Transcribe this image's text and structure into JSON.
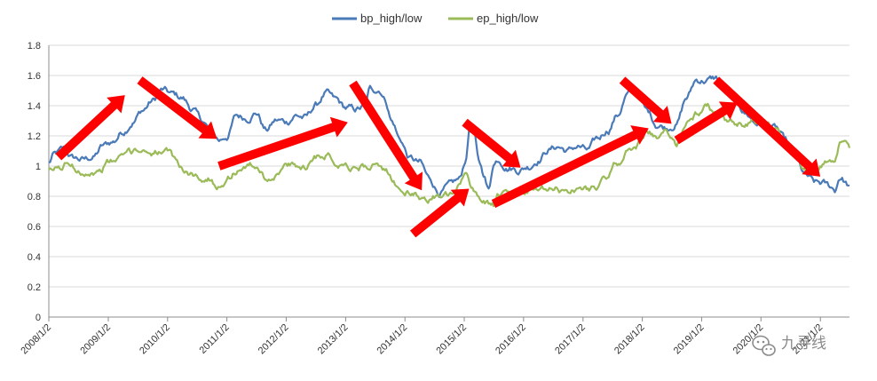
{
  "watermark": {
    "text": "九寻线",
    "icon": "wechat-icon"
  },
  "colors": {
    "bp": "#4a7ab7",
    "ep": "#9bbb59",
    "arrow": "#ff0000",
    "grid": "#d9d9d9",
    "axis": "#8c8c8c"
  },
  "chart_data": {
    "type": "line",
    "title": "",
    "xlabel": "",
    "ylabel": "",
    "ylim": [
      0,
      1.8
    ],
    "xlim": [
      "2008-01-02",
      "2021-06-30"
    ],
    "yticks": [
      "0",
      "0.2",
      "0.4",
      "0.6",
      "0.8",
      "1",
      "1.2",
      "1.4",
      "1.6",
      "1.8"
    ],
    "xticks": [
      "2008/1/2",
      "2009/1/2",
      "2010/1/2",
      "2011/1/2",
      "2012/1/2",
      "2013/1/2",
      "2014/1/2",
      "2015/1/2",
      "2016/1/2",
      "2017/1/2",
      "2018/1/2",
      "2019/1/2",
      "2020/1/2",
      "2021/1/2"
    ],
    "grid": true,
    "legend": "top-center",
    "series": [
      {
        "name": "bp_high/low",
        "color": "#4a7ab7",
        "points": [
          [
            "2008-01-02",
            1.02
          ],
          [
            "2008-02-01",
            1.07
          ],
          [
            "2008-04-01",
            1.1
          ],
          [
            "2008-06-01",
            1.05
          ],
          [
            "2008-08-01",
            1.04
          ],
          [
            "2008-10-01",
            1.06
          ],
          [
            "2008-12-01",
            1.13
          ],
          [
            "2009-02-01",
            1.16
          ],
          [
            "2009-04-01",
            1.23
          ],
          [
            "2009-06-01",
            1.3
          ],
          [
            "2009-08-01",
            1.37
          ],
          [
            "2009-10-01",
            1.43
          ],
          [
            "2009-12-01",
            1.5
          ],
          [
            "2010-02-01",
            1.47
          ],
          [
            "2010-04-01",
            1.45
          ],
          [
            "2010-06-01",
            1.38
          ],
          [
            "2010-08-01",
            1.3
          ],
          [
            "2010-10-01",
            1.22
          ],
          [
            "2010-11-15",
            1.17
          ],
          [
            "2011-01-02",
            1.2
          ],
          [
            "2011-03-01",
            1.33
          ],
          [
            "2011-05-01",
            1.32
          ],
          [
            "2011-07-01",
            1.36
          ],
          [
            "2011-09-01",
            1.24
          ],
          [
            "2011-11-01",
            1.3
          ],
          [
            "2012-01-02",
            1.29
          ],
          [
            "2012-03-01",
            1.34
          ],
          [
            "2012-05-01",
            1.32
          ],
          [
            "2012-07-01",
            1.4
          ],
          [
            "2012-09-01",
            1.48
          ],
          [
            "2012-11-01",
            1.43
          ],
          [
            "2013-01-02",
            1.38
          ],
          [
            "2013-03-01",
            1.37
          ],
          [
            "2013-05-01",
            1.39
          ],
          [
            "2013-06-01",
            1.5
          ],
          [
            "2013-08-01",
            1.51
          ],
          [
            "2013-09-01",
            1.45
          ],
          [
            "2013-10-15",
            1.3
          ],
          [
            "2013-12-01",
            1.18
          ],
          [
            "2014-02-01",
            1.05
          ],
          [
            "2014-04-01",
            1.02
          ],
          [
            "2014-06-01",
            0.91
          ],
          [
            "2014-08-01",
            0.83
          ],
          [
            "2014-10-01",
            0.86
          ],
          [
            "2014-12-01",
            0.9
          ],
          [
            "2015-01-15",
            1.05
          ],
          [
            "2015-02-01",
            1.25
          ],
          [
            "2015-03-01",
            1.23
          ],
          [
            "2015-04-01",
            1.02
          ],
          [
            "2015-05-01",
            0.95
          ],
          [
            "2015-06-01",
            0.84
          ],
          [
            "2015-07-01",
            1.02
          ],
          [
            "2015-08-01",
            1.05
          ],
          [
            "2015-10-01",
            1.0
          ],
          [
            "2015-12-01",
            0.98
          ],
          [
            "2016-02-01",
            1.0
          ],
          [
            "2016-04-01",
            1.05
          ],
          [
            "2016-06-01",
            1.11
          ],
          [
            "2016-08-01",
            1.13
          ],
          [
            "2016-10-01",
            1.1
          ],
          [
            "2016-12-01",
            1.13
          ],
          [
            "2017-02-01",
            1.1
          ],
          [
            "2017-04-01",
            1.17
          ],
          [
            "2017-06-01",
            1.24
          ],
          [
            "2017-08-01",
            1.34
          ],
          [
            "2017-10-01",
            1.47
          ],
          [
            "2017-12-01",
            1.48
          ],
          [
            "2018-02-01",
            1.36
          ],
          [
            "2018-04-01",
            1.28
          ],
          [
            "2018-06-01",
            1.26
          ],
          [
            "2018-08-01",
            1.29
          ],
          [
            "2018-10-01",
            1.45
          ],
          [
            "2018-12-01",
            1.57
          ],
          [
            "2019-02-01",
            1.57
          ],
          [
            "2019-04-01",
            1.58
          ],
          [
            "2019-06-01",
            1.5
          ],
          [
            "2019-08-01",
            1.42
          ],
          [
            "2019-10-01",
            1.35
          ],
          [
            "2019-12-01",
            1.29
          ],
          [
            "2020-02-01",
            1.27
          ],
          [
            "2020-04-01",
            1.25
          ],
          [
            "2020-06-01",
            1.16
          ],
          [
            "2020-08-01",
            1.05
          ],
          [
            "2020-10-01",
            0.93
          ],
          [
            "2020-12-01",
            0.88
          ],
          [
            "2021-01-15",
            0.88
          ],
          [
            "2021-03-01",
            0.86
          ],
          [
            "2021-04-01",
            0.84
          ],
          [
            "2021-05-01",
            0.93
          ],
          [
            "2021-06-30",
            0.87
          ]
        ]
      },
      {
        "name": "ep_high/low",
        "color": "#9bbb59",
        "points": [
          [
            "2008-01-02",
            0.96
          ],
          [
            "2008-03-01",
            0.98
          ],
          [
            "2008-05-01",
            1.02
          ],
          [
            "2008-07-01",
            0.98
          ],
          [
            "2008-09-01",
            0.97
          ],
          [
            "2008-11-01",
            0.96
          ],
          [
            "2009-01-02",
            1.02
          ],
          [
            "2009-03-01",
            1.04
          ],
          [
            "2009-05-01",
            1.08
          ],
          [
            "2009-07-01",
            1.11
          ],
          [
            "2009-09-01",
            1.1
          ],
          [
            "2009-11-01",
            1.1
          ],
          [
            "2010-01-02",
            1.08
          ],
          [
            "2010-03-01",
            1.02
          ],
          [
            "2010-05-01",
            0.95
          ],
          [
            "2010-07-01",
            0.93
          ],
          [
            "2010-09-01",
            0.92
          ],
          [
            "2010-11-01",
            0.88
          ],
          [
            "2011-01-02",
            0.92
          ],
          [
            "2011-03-01",
            0.97
          ],
          [
            "2011-05-01",
            1.01
          ],
          [
            "2011-07-01",
            1.0
          ],
          [
            "2011-09-01",
            0.92
          ],
          [
            "2011-11-01",
            0.95
          ],
          [
            "2012-01-02",
            1.0
          ],
          [
            "2012-03-01",
            0.99
          ],
          [
            "2012-05-01",
            1.0
          ],
          [
            "2012-07-01",
            1.07
          ],
          [
            "2012-09-01",
            1.09
          ],
          [
            "2012-11-01",
            1.03
          ],
          [
            "2013-01-02",
            1.02
          ],
          [
            "2013-03-01",
            0.99
          ],
          [
            "2013-05-01",
            1.0
          ],
          [
            "2013-07-01",
            1.02
          ],
          [
            "2013-09-01",
            0.95
          ],
          [
            "2013-11-01",
            0.88
          ],
          [
            "2014-01-02",
            0.83
          ],
          [
            "2014-03-01",
            0.8
          ],
          [
            "2014-05-01",
            0.78
          ],
          [
            "2014-07-01",
            0.8
          ],
          [
            "2014-09-01",
            0.79
          ],
          [
            "2014-11-01",
            0.8
          ],
          [
            "2015-01-15",
            0.95
          ],
          [
            "2015-03-01",
            0.85
          ],
          [
            "2015-05-01",
            0.78
          ],
          [
            "2015-07-01",
            0.74
          ],
          [
            "2015-08-01",
            0.8
          ],
          [
            "2015-10-01",
            0.8
          ],
          [
            "2015-12-01",
            0.82
          ],
          [
            "2016-02-01",
            0.83
          ],
          [
            "2016-04-01",
            0.82
          ],
          [
            "2016-06-01",
            0.84
          ],
          [
            "2016-08-01",
            0.84
          ],
          [
            "2016-10-01",
            0.83
          ],
          [
            "2016-12-01",
            0.85
          ],
          [
            "2017-02-01",
            0.85
          ],
          [
            "2017-04-01",
            0.87
          ],
          [
            "2017-06-01",
            0.92
          ],
          [
            "2017-08-01",
            1.02
          ],
          [
            "2017-10-01",
            1.1
          ],
          [
            "2017-12-01",
            1.14
          ],
          [
            "2018-02-01",
            1.25
          ],
          [
            "2018-04-01",
            1.18
          ],
          [
            "2018-06-01",
            1.22
          ],
          [
            "2018-08-01",
            1.14
          ],
          [
            "2018-10-01",
            1.3
          ],
          [
            "2018-12-01",
            1.35
          ],
          [
            "2019-02-01",
            1.4
          ],
          [
            "2019-04-01",
            1.34
          ],
          [
            "2019-06-01",
            1.28
          ],
          [
            "2019-08-01",
            1.26
          ],
          [
            "2019-10-01",
            1.27
          ],
          [
            "2019-12-01",
            1.29
          ],
          [
            "2020-02-01",
            1.3
          ],
          [
            "2020-04-01",
            1.24
          ],
          [
            "2020-06-01",
            1.12
          ],
          [
            "2020-08-01",
            1.06
          ],
          [
            "2020-10-01",
            0.98
          ],
          [
            "2020-12-01",
            0.99
          ],
          [
            "2021-01-15",
            1.01
          ],
          [
            "2021-03-01",
            1.04
          ],
          [
            "2021-04-01",
            1.05
          ],
          [
            "2021-05-01",
            1.15
          ],
          [
            "2021-06-30",
            1.12
          ]
        ]
      }
    ],
    "arrows": [
      {
        "from": [
          "2008-03-01",
          1.06
        ],
        "to": [
          "2009-04-15",
          1.47
        ]
      },
      {
        "from": [
          "2009-07-15",
          1.57
        ],
        "to": [
          "2010-11-01",
          1.18
        ]
      },
      {
        "from": [
          "2010-11-15",
          1.0
        ],
        "to": [
          "2013-01-15",
          1.29
        ]
      },
      {
        "from": [
          "2013-02-15",
          1.55
        ],
        "to": [
          "2014-04-15",
          0.84
        ]
      },
      {
        "from": [
          "2014-02-20",
          0.55
        ],
        "to": [
          "2015-02-01",
          0.85
        ]
      },
      {
        "from": [
          "2015-01-05",
          1.29
        ],
        "to": [
          "2015-12-15",
          0.99
        ]
      },
      {
        "from": [
          "2015-07-01",
          0.75
        ],
        "to": [
          "2018-02-10",
          1.25
        ]
      },
      {
        "from": [
          "2017-09-01",
          1.57
        ],
        "to": [
          "2018-07-01",
          1.28
        ]
      },
      {
        "from": [
          "2018-08-01",
          1.17
        ],
        "to": [
          "2019-08-10",
          1.42
        ]
      },
      {
        "from": [
          "2019-04-01",
          1.57
        ],
        "to": [
          "2021-01-01",
          0.93
        ]
      }
    ]
  }
}
